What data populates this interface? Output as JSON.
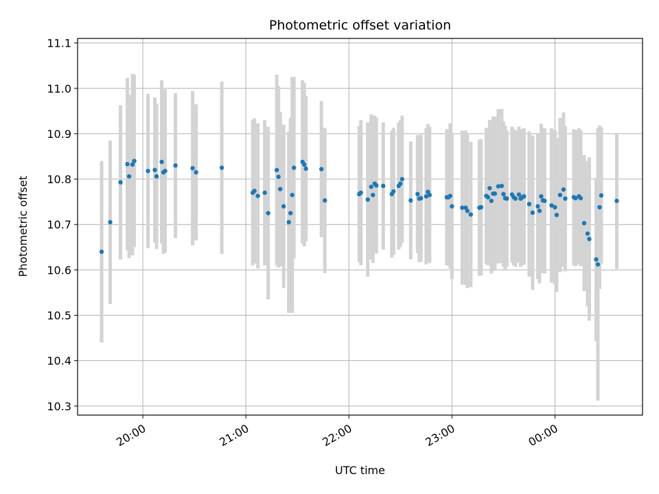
{
  "chart_data": {
    "type": "scatter",
    "title": "Photometric offset variation",
    "xlabel": "UTC time",
    "ylabel": "Photometric offset",
    "x_unit": "UTC time (HH:MM)",
    "xlim": [
      "19:22",
      "00:51"
    ],
    "ylim": [
      10.28,
      11.11
    ],
    "grid": true,
    "x_ticks": [
      "20:00",
      "21:00",
      "22:00",
      "23:00",
      "00:00"
    ],
    "y_ticks": [
      "10.3",
      "10.4",
      "10.5",
      "10.6",
      "10.7",
      "10.8",
      "10.9",
      "11.0",
      "11.1"
    ],
    "colors": {
      "marker": "#1f77b4",
      "errorbar": "#d3d3d3",
      "grid": "#b0b0b0"
    },
    "series": [
      {
        "x": [
          "19:36",
          "19:41",
          "19:47",
          "19:51",
          "19:52",
          "19:54",
          "19:55",
          "20:03",
          "20:07",
          "20:08",
          "20:11",
          "20:12",
          "20:13",
          "20:19",
          "20:29",
          "20:31",
          "20:46",
          "21:04",
          "21:05",
          "21:07",
          "21:11",
          "21:13",
          "21:18",
          "21:19",
          "21:20",
          "21:22",
          "21:25",
          "21:26",
          "21:27",
          "21:28",
          "21:33",
          "21:34",
          "21:35",
          "21:44",
          "21:46",
          "22:06",
          "22:07",
          "22:11",
          "22:13",
          "22:14",
          "22:15",
          "22:16",
          "22:20",
          "22:25",
          "22:26",
          "22:29",
          "22:30",
          "22:31",
          "22:36",
          "22:40",
          "22:41",
          "22:42",
          "22:45",
          "22:46",
          "22:47",
          "22:57",
          "22:58",
          "22:59",
          "23:00",
          "23:06",
          "23:08",
          "23:09",
          "23:11",
          "23:16",
          "23:17",
          "23:20",
          "23:21",
          "23:22",
          "23:23",
          "23:24",
          "23:25",
          "23:27",
          "23:29",
          "23:30",
          "23:31",
          "23:32",
          "23:35",
          "23:36",
          "23:37",
          "23:39",
          "23:40",
          "23:41",
          "23:42",
          "23:45",
          "23:47",
          "23:50",
          "23:51",
          "23:52",
          "23:53",
          "23:54",
          "23:58",
          "00:00",
          "00:01",
          "00:03",
          "00:05",
          "00:06",
          "00:11",
          "00:12",
          "00:14",
          "00:15",
          "00:17",
          "00:19",
          "00:20",
          "00:24",
          "00:25",
          "00:26",
          "00:27",
          "00:36"
        ],
        "y": [
          10.64,
          10.705,
          10.793,
          10.833,
          10.806,
          10.832,
          10.84,
          10.818,
          10.82,
          10.806,
          10.838,
          10.815,
          10.818,
          10.83,
          10.824,
          10.815,
          10.825,
          10.77,
          10.774,
          10.763,
          10.77,
          10.725,
          10.82,
          10.805,
          10.778,
          10.74,
          10.705,
          10.725,
          10.765,
          10.825,
          10.838,
          10.832,
          10.823,
          10.822,
          10.753,
          10.767,
          10.77,
          10.755,
          10.783,
          10.765,
          10.79,
          10.786,
          10.785,
          10.767,
          10.773,
          10.785,
          10.79,
          10.8,
          10.753,
          10.767,
          10.757,
          10.758,
          10.762,
          10.772,
          10.765,
          10.76,
          10.76,
          10.763,
          10.74,
          10.737,
          10.737,
          10.73,
          10.722,
          10.737,
          10.738,
          10.763,
          10.76,
          10.78,
          10.752,
          10.768,
          10.768,
          10.784,
          10.785,
          10.767,
          10.758,
          10.757,
          10.766,
          10.76,
          10.757,
          10.766,
          10.757,
          10.76,
          10.762,
          10.745,
          10.726,
          10.74,
          10.73,
          10.762,
          10.753,
          10.752,
          10.742,
          10.738,
          10.721,
          10.765,
          10.777,
          10.757,
          10.76,
          10.758,
          10.762,
          10.758,
          10.703,
          10.68,
          10.668,
          10.623,
          10.612,
          10.738,
          10.764,
          10.752
        ],
        "yerr": [
          0.2,
          0.18,
          0.17,
          0.19,
          0.18,
          0.2,
          0.19,
          0.17,
          0.16,
          0.16,
          0.18,
          0.18,
          0.18,
          0.16,
          0.17,
          0.15,
          0.19,
          0.16,
          0.16,
          0.16,
          0.16,
          0.19,
          0.21,
          0.2,
          0.17,
          0.18,
          0.2,
          0.21,
          0.26,
          0.2,
          0.18,
          0.18,
          0.16,
          0.15,
          0.16,
          0.15,
          0.16,
          0.17,
          0.16,
          0.15,
          0.15,
          0.15,
          0.14,
          0.14,
          0.14,
          0.14,
          0.14,
          0.14,
          0.13,
          0.13,
          0.14,
          0.14,
          0.15,
          0.15,
          0.15,
          0.15,
          0.15,
          0.16,
          0.16,
          0.17,
          0.17,
          0.17,
          0.16,
          0.15,
          0.15,
          0.15,
          0.15,
          0.15,
          0.16,
          0.17,
          0.17,
          0.17,
          0.17,
          0.16,
          0.16,
          0.15,
          0.15,
          0.15,
          0.15,
          0.15,
          0.15,
          0.15,
          0.15,
          0.16,
          0.17,
          0.16,
          0.16,
          0.16,
          0.16,
          0.16,
          0.17,
          0.17,
          0.17,
          0.17,
          0.17,
          0.16,
          0.15,
          0.15,
          0.15,
          0.15,
          0.15,
          0.16,
          0.18,
          0.18,
          0.3,
          0.18,
          0.15,
          0.15
        ]
      }
    ]
  }
}
